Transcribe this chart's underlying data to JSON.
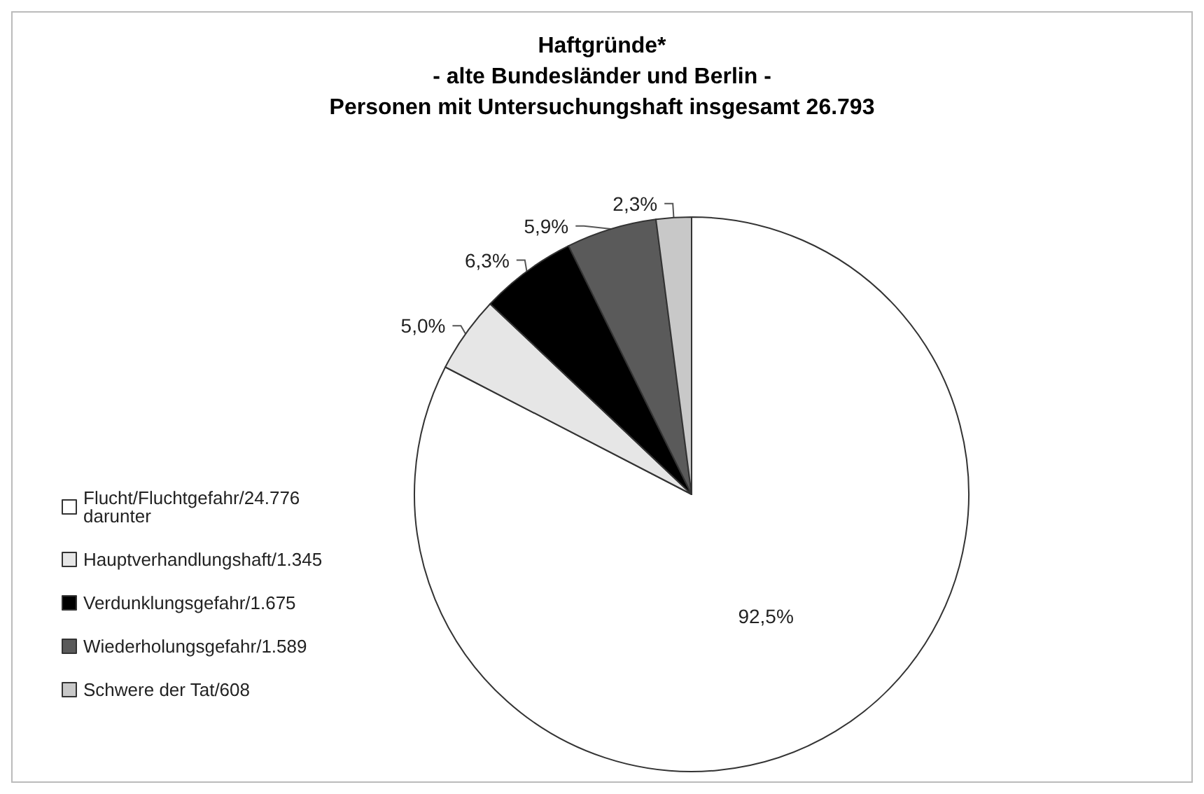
{
  "chart_data": {
    "type": "pie",
    "title": "Haftgründe*\n- alte Bundesländer und Berlin -\nPersonen mit Untersuchungshaft insgesamt 26.793",
    "categories": [
      "Flucht/Fluchtgefahr/24.776\ndarunter",
      "Hauptverhandlungshaft/1.345",
      "Verdunklungsgefahr/1.675",
      "Wiederholungsgefahr/1.589",
      "Schwere der Tat/608"
    ],
    "values": [
      92.5,
      5.0,
      6.3,
      5.9,
      2.3
    ],
    "value_labels": [
      "92,5%",
      "5,0%",
      "6,3%",
      "5,9%",
      "2,3%"
    ],
    "colors": [
      "#ffffff",
      "#e6e6e6",
      "#000000",
      "#5a5a5a",
      "#c8c8c8"
    ],
    "legend": "left"
  }
}
